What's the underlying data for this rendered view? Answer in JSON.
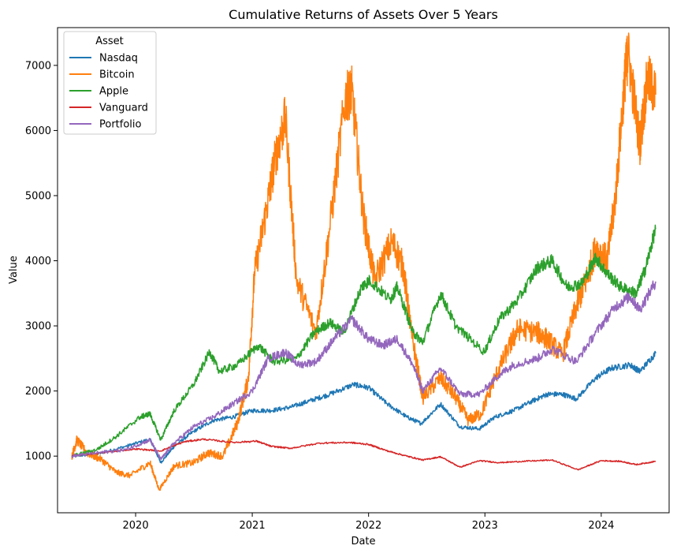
{
  "chart_data": {
    "type": "line",
    "title": "Cumulative Returns of Assets Over 5 Years",
    "xlabel": "Date",
    "ylabel": "Value",
    "xlim": [
      "2019-05-01",
      "2024-08-01"
    ],
    "ylim": [
      130,
      7580
    ],
    "x_ticks": [
      "2020",
      "2021",
      "2022",
      "2023",
      "2024"
    ],
    "y_ticks": [
      1000,
      2000,
      3000,
      4000,
      5000,
      6000,
      7000
    ],
    "grid": false,
    "legend": {
      "title": "Asset",
      "position": "top-left"
    },
    "series": [
      {
        "name": "Nasdaq",
        "color": "#1f77b4",
        "points": [
          [
            "2019-06-15",
            1000
          ],
          [
            "2019-09-01",
            1030
          ],
          [
            "2019-12-01",
            1150
          ],
          [
            "2020-02-15",
            1260
          ],
          [
            "2020-03-20",
            900
          ],
          [
            "2020-05-01",
            1150
          ],
          [
            "2020-07-01",
            1380
          ],
          [
            "2020-09-01",
            1550
          ],
          [
            "2020-11-01",
            1600
          ],
          [
            "2021-01-01",
            1700
          ],
          [
            "2021-03-01",
            1700
          ],
          [
            "2021-05-01",
            1750
          ],
          [
            "2021-07-01",
            1850
          ],
          [
            "2021-09-01",
            1950
          ],
          [
            "2021-11-15",
            2100
          ],
          [
            "2022-01-01",
            2050
          ],
          [
            "2022-03-01",
            1800
          ],
          [
            "2022-05-01",
            1600
          ],
          [
            "2022-06-15",
            1500
          ],
          [
            "2022-08-15",
            1800
          ],
          [
            "2022-10-15",
            1450
          ],
          [
            "2022-12-15",
            1420
          ],
          [
            "2023-02-01",
            1600
          ],
          [
            "2023-04-01",
            1700
          ],
          [
            "2023-06-01",
            1850
          ],
          [
            "2023-07-15",
            1950
          ],
          [
            "2023-09-01",
            1950
          ],
          [
            "2023-10-15",
            1880
          ],
          [
            "2023-12-15",
            2200
          ],
          [
            "2024-02-01",
            2350
          ],
          [
            "2024-04-01",
            2400
          ],
          [
            "2024-05-01",
            2300
          ],
          [
            "2024-06-20",
            2580
          ]
        ]
      },
      {
        "name": "Bitcoin",
        "color": "#ff7f0e",
        "points": [
          [
            "2019-06-15",
            1000
          ],
          [
            "2019-07-01",
            1250
          ],
          [
            "2019-08-01",
            1050
          ],
          [
            "2019-09-15",
            950
          ],
          [
            "2019-11-01",
            750
          ],
          [
            "2019-12-15",
            700
          ],
          [
            "2020-02-15",
            900
          ],
          [
            "2020-03-15",
            480
          ],
          [
            "2020-05-01",
            850
          ],
          [
            "2020-07-01",
            900
          ],
          [
            "2020-08-15",
            1050
          ],
          [
            "2020-10-01",
            1000
          ],
          [
            "2020-11-15",
            1500
          ],
          [
            "2020-12-20",
            2200
          ],
          [
            "2021-01-08",
            3800
          ],
          [
            "2021-02-15",
            4800
          ],
          [
            "2021-03-15",
            5600
          ],
          [
            "2021-04-15",
            6200
          ],
          [
            "2021-05-20",
            3700
          ],
          [
            "2021-07-20",
            2900
          ],
          [
            "2021-09-01",
            4500
          ],
          [
            "2021-10-20",
            6500
          ],
          [
            "2021-11-10",
            6600
          ],
          [
            "2021-12-15",
            4700
          ],
          [
            "2022-01-20",
            3700
          ],
          [
            "2022-03-15",
            4300
          ],
          [
            "2022-04-20",
            3900
          ],
          [
            "2022-05-15",
            2900
          ],
          [
            "2022-06-20",
            1900
          ],
          [
            "2022-08-15",
            2200
          ],
          [
            "2022-10-01",
            1900
          ],
          [
            "2022-11-10",
            1550
          ],
          [
            "2022-12-20",
            1650
          ],
          [
            "2023-02-01",
            2200
          ],
          [
            "2023-03-20",
            2700
          ],
          [
            "2023-04-15",
            2950
          ],
          [
            "2023-06-15",
            2900
          ],
          [
            "2023-07-15",
            2800
          ],
          [
            "2023-09-01",
            2550
          ],
          [
            "2023-10-15",
            3300
          ],
          [
            "2023-11-15",
            3700
          ],
          [
            "2023-12-15",
            4200
          ],
          [
            "2024-01-20",
            4000
          ],
          [
            "2024-02-15",
            5000
          ],
          [
            "2024-03-15",
            6800
          ],
          [
            "2024-03-25",
            7200
          ],
          [
            "2024-05-01",
            5800
          ],
          [
            "2024-05-25",
            6800
          ],
          [
            "2024-06-20",
            6550
          ]
        ]
      },
      {
        "name": "Apple",
        "color": "#2ca02c",
        "points": [
          [
            "2019-06-15",
            1000
          ],
          [
            "2019-09-01",
            1100
          ],
          [
            "2019-11-01",
            1300
          ],
          [
            "2020-01-15",
            1600
          ],
          [
            "2020-02-15",
            1650
          ],
          [
            "2020-03-20",
            1250
          ],
          [
            "2020-05-01",
            1700
          ],
          [
            "2020-07-01",
            2100
          ],
          [
            "2020-08-20",
            2600
          ],
          [
            "2020-09-20",
            2300
          ],
          [
            "2020-11-15",
            2400
          ],
          [
            "2021-01-20",
            2700
          ],
          [
            "2021-03-10",
            2450
          ],
          [
            "2021-05-20",
            2500
          ],
          [
            "2021-07-15",
            2900
          ],
          [
            "2021-09-01",
            3050
          ],
          [
            "2021-10-15",
            2900
          ],
          [
            "2021-12-10",
            3600
          ],
          [
            "2022-01-05",
            3700
          ],
          [
            "2022-03-10",
            3400
          ],
          [
            "2022-04-01",
            3600
          ],
          [
            "2022-05-20",
            2900
          ],
          [
            "2022-06-20",
            2750
          ],
          [
            "2022-08-15",
            3500
          ],
          [
            "2022-10-01",
            3000
          ],
          [
            "2022-12-30",
            2600
          ],
          [
            "2023-02-15",
            3100
          ],
          [
            "2023-04-15",
            3400
          ],
          [
            "2023-06-15",
            3900
          ],
          [
            "2023-07-31",
            4000
          ],
          [
            "2023-09-15",
            3600
          ],
          [
            "2023-11-01",
            3650
          ],
          [
            "2023-12-15",
            4050
          ],
          [
            "2024-01-20",
            3800
          ],
          [
            "2024-03-01",
            3600
          ],
          [
            "2024-04-20",
            3500
          ],
          [
            "2024-05-20",
            3900
          ],
          [
            "2024-06-20",
            4500
          ]
        ]
      },
      {
        "name": "Vanguard",
        "color": "#d62728",
        "points": [
          [
            "2019-06-15",
            1000
          ],
          [
            "2019-10-01",
            1060
          ],
          [
            "2020-01-01",
            1110
          ],
          [
            "2020-03-20",
            1080
          ],
          [
            "2020-06-01",
            1220
          ],
          [
            "2020-08-01",
            1260
          ],
          [
            "2020-11-01",
            1210
          ],
          [
            "2021-01-15",
            1230
          ],
          [
            "2021-03-01",
            1150
          ],
          [
            "2021-05-01",
            1120
          ],
          [
            "2021-08-01",
            1200
          ],
          [
            "2021-11-01",
            1210
          ],
          [
            "2022-01-01",
            1180
          ],
          [
            "2022-03-01",
            1080
          ],
          [
            "2022-05-01",
            1000
          ],
          [
            "2022-06-20",
            940
          ],
          [
            "2022-08-15",
            990
          ],
          [
            "2022-10-15",
            830
          ],
          [
            "2022-12-15",
            930
          ],
          [
            "2023-02-15",
            900
          ],
          [
            "2023-05-01",
            920
          ],
          [
            "2023-07-31",
            940
          ],
          [
            "2023-10-20",
            790
          ],
          [
            "2023-12-31",
            930
          ],
          [
            "2024-03-01",
            920
          ],
          [
            "2024-04-20",
            870
          ],
          [
            "2024-06-20",
            920
          ]
        ]
      },
      {
        "name": "Portfolio",
        "color": "#9467bd",
        "points": [
          [
            "2019-06-15",
            1000
          ],
          [
            "2019-09-01",
            1050
          ],
          [
            "2019-12-01",
            1100
          ],
          [
            "2020-02-15",
            1250
          ],
          [
            "2020-03-20",
            950
          ],
          [
            "2020-05-01",
            1200
          ],
          [
            "2020-07-01",
            1450
          ],
          [
            "2020-09-01",
            1600
          ],
          [
            "2020-11-01",
            1800
          ],
          [
            "2021-01-01",
            2000
          ],
          [
            "2021-02-20",
            2500
          ],
          [
            "2021-04-15",
            2600
          ],
          [
            "2021-05-25",
            2400
          ],
          [
            "2021-07-20",
            2450
          ],
          [
            "2021-09-15",
            2800
          ],
          [
            "2021-11-10",
            3100
          ],
          [
            "2021-12-31",
            2800
          ],
          [
            "2022-02-15",
            2700
          ],
          [
            "2022-04-01",
            2800
          ],
          [
            "2022-05-20",
            2400
          ],
          [
            "2022-06-20",
            2000
          ],
          [
            "2022-08-15",
            2350
          ],
          [
            "2022-10-15",
            1950
          ],
          [
            "2022-12-15",
            1950
          ],
          [
            "2023-02-15",
            2250
          ],
          [
            "2023-03-31",
            2400
          ],
          [
            "2023-06-15",
            2500
          ],
          [
            "2023-07-31",
            2650
          ],
          [
            "2023-10-15",
            2450
          ],
          [
            "2023-12-15",
            2900
          ],
          [
            "2024-02-15",
            3300
          ],
          [
            "2024-03-31",
            3450
          ],
          [
            "2024-05-01",
            3250
          ],
          [
            "2024-06-20",
            3680
          ]
        ]
      }
    ]
  }
}
